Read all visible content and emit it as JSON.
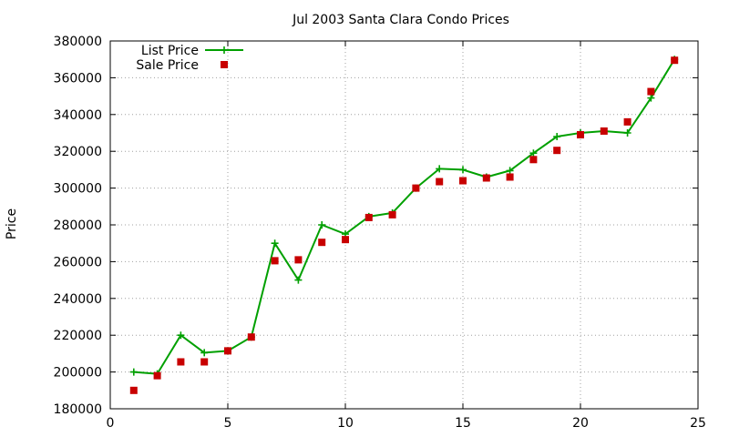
{
  "chart_data": {
    "type": "line",
    "title": "Jul 2003 Santa Clara Condo Prices",
    "xlabel": "",
    "ylabel": "Price",
    "xlim": [
      0,
      25
    ],
    "ylim": [
      180000,
      380000
    ],
    "xticks": [
      0,
      5,
      10,
      15,
      20,
      25
    ],
    "yticks": [
      180000,
      200000,
      220000,
      240000,
      260000,
      280000,
      300000,
      320000,
      340000,
      360000,
      380000
    ],
    "grid": true,
    "legend_position": "top-left",
    "series": [
      {
        "name": "List Price",
        "style": "lines+points",
        "color": "#00a000",
        "marker": "plus",
        "x": [
          1,
          2,
          3,
          4,
          5,
          6,
          7,
          8,
          9,
          10,
          11,
          12,
          13,
          14,
          15,
          16,
          17,
          18,
          19,
          20,
          21,
          22,
          23,
          24
        ],
        "y": [
          200000,
          199000,
          220000,
          210500,
          211500,
          219000,
          270000,
          250000,
          280000,
          275000,
          284500,
          286500,
          300000,
          310500,
          310000,
          306000,
          309500,
          319000,
          328000,
          330000,
          331000,
          330000,
          349000,
          370000
        ]
      },
      {
        "name": "Sale Price",
        "style": "points",
        "color": "#c80000",
        "marker": "square",
        "x": [
          1,
          2,
          3,
          4,
          5,
          6,
          7,
          8,
          9,
          10,
          11,
          12,
          13,
          14,
          15,
          16,
          17,
          18,
          19,
          20,
          21,
          22,
          23,
          24
        ],
        "y": [
          190000,
          198000,
          205500,
          205500,
          211500,
          219000,
          260500,
          261000,
          270500,
          272000,
          284000,
          285500,
          300000,
          303500,
          304000,
          305500,
          306000,
          315500,
          320500,
          329000,
          331000,
          336000,
          352500,
          369500
        ]
      }
    ]
  }
}
